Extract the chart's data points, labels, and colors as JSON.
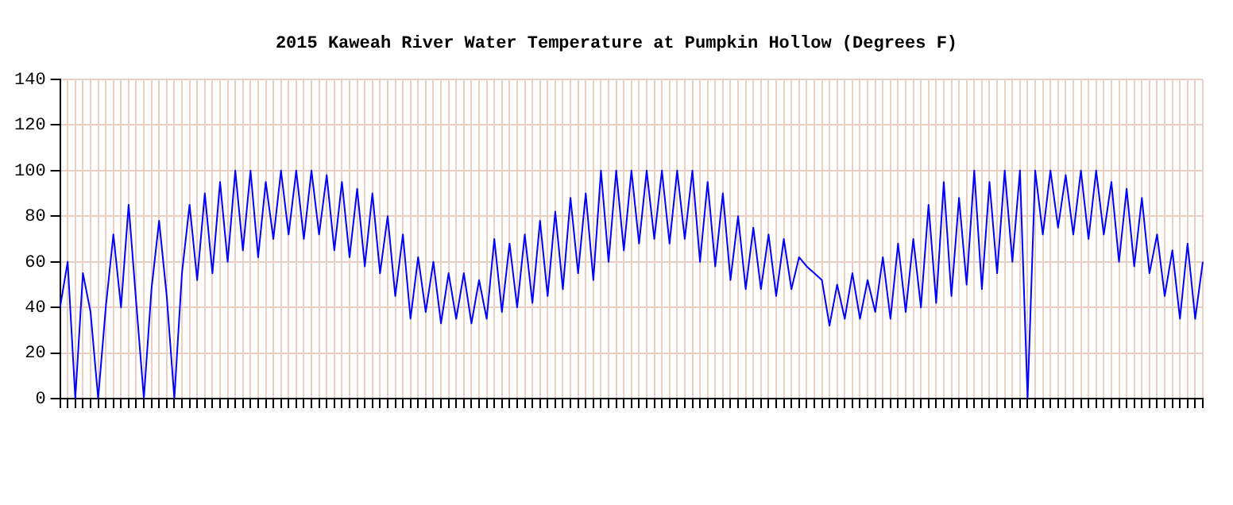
{
  "chart_data": {
    "type": "line",
    "title": "2015 Kaweah River Water Temperature at Pumpkin Hollow (Degrees F)",
    "categories": [
      null,
      null,
      null,
      null,
      null,
      null,
      null,
      null,
      null,
      null,
      null,
      null,
      null,
      null,
      null,
      null,
      null,
      null,
      null,
      null,
      null,
      null,
      null,
      null,
      null,
      null,
      null,
      null,
      null,
      null,
      null,
      null,
      null,
      null,
      null,
      null,
      null,
      null,
      null,
      null,
      null,
      null,
      null,
      null,
      null,
      null,
      null,
      null,
      null,
      null,
      null,
      null,
      null,
      null,
      null,
      null,
      null,
      null,
      null,
      null,
      null,
      null,
      null,
      null,
      null,
      null,
      null,
      null,
      null,
      null,
      null,
      null,
      null,
      null,
      null,
      null,
      null,
      null,
      null,
      null,
      null,
      null,
      null,
      null,
      null,
      null,
      null,
      null,
      null,
      null,
      null,
      null,
      null,
      null,
      null,
      null,
      null,
      null,
      null,
      null,
      null,
      null,
      null,
      null,
      null,
      null,
      null,
      null,
      null,
      null,
      null,
      null,
      null,
      null,
      null,
      null,
      null,
      null,
      null,
      null,
      null,
      null,
      null,
      null,
      null,
      null,
      null,
      null,
      null,
      null,
      null,
      null,
      null,
      null,
      null,
      null,
      null,
      null,
      null,
      null,
      null,
      null,
      null,
      null,
      null,
      null,
      null,
      null,
      null,
      null,
      null
    ],
    "series": [
      {
        "color": "#0000ff",
        "values": [
          40,
          60,
          0,
          55,
          38,
          0,
          40,
          72,
          40,
          85,
          42,
          0,
          48,
          78,
          45,
          0,
          55,
          85,
          52,
          90,
          55,
          95,
          60,
          100,
          65,
          100,
          62,
          95,
          70,
          100,
          72,
          100,
          70,
          100,
          72,
          98,
          65,
          95,
          62,
          92,
          58,
          90,
          55,
          80,
          45,
          72,
          35,
          62,
          38,
          60,
          33,
          55,
          35,
          55,
          33,
          52,
          35,
          70,
          38,
          68,
          40,
          72,
          42,
          78,
          45,
          82,
          48,
          88,
          55,
          90,
          52,
          100,
          60,
          100,
          65,
          100,
          68,
          100,
          70,
          100,
          68,
          100,
          70,
          100,
          60,
          95,
          58,
          90,
          52,
          80,
          48,
          75,
          48,
          72,
          45,
          70,
          48,
          62,
          58,
          55,
          52,
          32,
          50,
          35,
          55,
          35,
          52,
          38,
          62,
          35,
          68,
          38,
          70,
          40,
          85,
          42,
          95,
          45,
          88,
          50,
          100,
          48,
          95,
          55,
          100,
          60,
          100,
          0,
          100,
          72,
          100,
          75,
          98,
          72,
          100,
          70,
          100,
          72,
          95,
          60,
          92,
          58,
          88,
          55,
          72,
          45,
          65,
          35,
          68,
          35,
          60
        ]
      }
    ],
    "ylim": [
      0,
      140
    ],
    "yticks": [
      0,
      20,
      40,
      60,
      80,
      100,
      120,
      140
    ],
    "grid": true,
    "legend": false,
    "marker": "none",
    "line_style": "solid",
    "tick_labels": "y"
  }
}
